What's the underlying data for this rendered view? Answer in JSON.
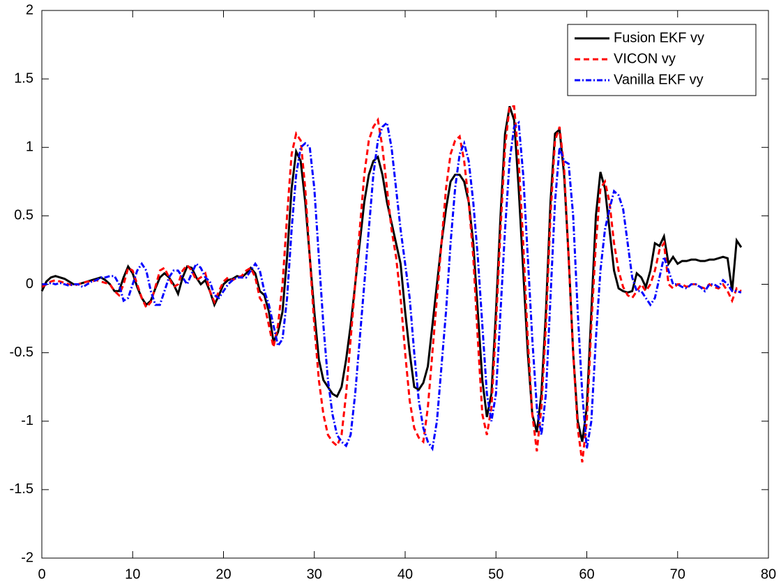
{
  "chart_data": {
    "type": "line",
    "x": [
      0,
      0.5,
      1,
      1.5,
      2,
      2.5,
      3,
      3.5,
      4,
      4.5,
      5,
      5.5,
      6,
      6.5,
      7,
      7.5,
      8,
      8.5,
      9,
      9.5,
      10,
      10.5,
      11,
      11.5,
      12,
      12.5,
      13,
      13.5,
      14,
      14.5,
      15,
      15.5,
      16,
      16.5,
      17,
      17.5,
      18,
      18.5,
      19,
      19.5,
      20,
      20.5,
      21,
      21.5,
      22,
      22.5,
      23,
      23.5,
      24,
      24.5,
      25,
      25.5,
      26,
      26.5,
      27,
      27.5,
      28,
      28.5,
      29,
      29.5,
      30,
      30.5,
      31,
      31.5,
      32,
      32.5,
      33,
      33.5,
      34,
      34.5,
      35,
      35.5,
      36,
      36.5,
      37,
      37.5,
      38,
      38.5,
      39,
      39.5,
      40,
      40.5,
      41,
      41.5,
      42,
      42.5,
      43,
      43.5,
      44,
      44.5,
      45,
      45.5,
      46,
      46.5,
      47,
      47.5,
      48,
      48.5,
      49,
      49.5,
      50,
      50.5,
      51,
      51.5,
      52,
      52.5,
      53,
      53.5,
      54,
      54.5,
      55,
      55.5,
      56,
      56.5,
      57,
      57.5,
      58,
      58.5,
      59,
      59.5,
      60,
      60.5,
      61,
      61.5,
      62,
      62.5,
      63,
      63.5,
      64,
      64.5,
      65,
      65.5,
      66,
      66.5,
      67,
      67.5,
      68,
      68.5,
      69,
      69.5,
      70,
      70.5,
      71,
      71.5,
      72,
      72.5,
      73,
      73.5,
      74,
      74.5,
      75,
      75.5,
      76,
      76.5,
      77
    ],
    "series": [
      {
        "name": "Fusion EKF vy",
        "color": "#000000",
        "dash": "solid",
        "values": [
          -0.05,
          0.02,
          0.05,
          0.06,
          0.05,
          0.04,
          0.02,
          0.0,
          0.0,
          0.01,
          0.02,
          0.03,
          0.04,
          0.05,
          0.03,
          0.0,
          -0.05,
          -0.05,
          0.05,
          0.13,
          0.08,
          -0.02,
          -0.1,
          -0.15,
          -0.12,
          -0.03,
          0.05,
          0.08,
          0.05,
          0.0,
          -0.07,
          0.05,
          0.13,
          0.12,
          0.05,
          0.0,
          0.03,
          -0.05,
          -0.15,
          -0.08,
          0.0,
          0.03,
          0.04,
          0.06,
          0.05,
          0.08,
          0.12,
          0.08,
          -0.05,
          -0.08,
          -0.2,
          -0.42,
          -0.35,
          -0.2,
          0.2,
          0.7,
          0.97,
          0.9,
          0.6,
          0.2,
          -0.2,
          -0.55,
          -0.7,
          -0.75,
          -0.8,
          -0.82,
          -0.75,
          -0.55,
          -0.3,
          0.0,
          0.3,
          0.6,
          0.8,
          0.9,
          0.93,
          0.8,
          0.6,
          0.45,
          0.3,
          0.15,
          -0.2,
          -0.5,
          -0.75,
          -0.77,
          -0.72,
          -0.6,
          -0.3,
          0.0,
          0.3,
          0.55,
          0.75,
          0.8,
          0.8,
          0.75,
          0.6,
          0.3,
          -0.2,
          -0.7,
          -0.97,
          -0.8,
          -0.2,
          0.5,
          1.1,
          1.3,
          1.2,
          0.7,
          0.1,
          -0.5,
          -0.95,
          -1.08,
          -0.8,
          -0.2,
          0.6,
          1.1,
          1.13,
          0.8,
          0.2,
          -0.5,
          -1.0,
          -1.15,
          -0.9,
          -0.2,
          0.5,
          0.82,
          0.7,
          0.4,
          0.1,
          -0.03,
          -0.05,
          -0.06,
          -0.05,
          0.08,
          0.05,
          -0.02,
          0.1,
          0.3,
          0.28,
          0.35,
          0.15,
          0.2,
          0.15,
          0.17,
          0.17,
          0.18,
          0.18,
          0.17,
          0.17,
          0.18,
          0.18,
          0.19,
          0.2,
          0.19,
          -0.05,
          0.32,
          0.27
        ]
      },
      {
        "name": "VICON vy",
        "color": "#ff0000",
        "dash": "dashed",
        "values": [
          -0.02,
          0.0,
          0.02,
          0.03,
          0.02,
          0.01,
          0.0,
          -0.01,
          0.0,
          0.01,
          0.02,
          0.02,
          0.03,
          0.02,
          0.01,
          0.0,
          -0.05,
          -0.08,
          0.0,
          0.12,
          0.1,
          0.0,
          -0.1,
          -0.17,
          -0.13,
          -0.02,
          0.1,
          0.12,
          0.05,
          -0.02,
          0.0,
          0.1,
          0.14,
          0.1,
          0.03,
          0.05,
          0.08,
          -0.05,
          -0.13,
          -0.05,
          0.02,
          0.05,
          0.03,
          0.05,
          0.06,
          0.1,
          0.12,
          0.05,
          -0.1,
          -0.15,
          -0.3,
          -0.46,
          -0.3,
          0.0,
          0.5,
          0.95,
          1.1,
          1.05,
          0.7,
          0.2,
          -0.3,
          -0.7,
          -0.95,
          -1.1,
          -1.15,
          -1.18,
          -1.1,
          -0.8,
          -0.4,
          0.0,
          0.4,
          0.8,
          1.05,
          1.15,
          1.2,
          1.0,
          0.7,
          0.4,
          0.2,
          -0.1,
          -0.5,
          -0.85,
          -1.05,
          -1.12,
          -1.15,
          -0.9,
          -0.5,
          -0.1,
          0.3,
          0.7,
          0.95,
          1.05,
          1.08,
          0.9,
          0.6,
          0.2,
          -0.4,
          -0.95,
          -1.1,
          -0.9,
          -0.3,
          0.4,
          1.0,
          1.3,
          1.3,
          0.9,
          0.3,
          -0.4,
          -0.95,
          -1.22,
          -0.9,
          -0.3,
          0.5,
          1.05,
          1.15,
          0.85,
          0.2,
          -0.5,
          -1.05,
          -1.3,
          -1.0,
          -0.3,
          0.3,
          0.7,
          0.75,
          0.6,
          0.3,
          0.1,
          -0.02,
          -0.08,
          -0.1,
          -0.05,
          0.0,
          -0.05,
          0.0,
          0.1,
          0.25,
          0.3,
          0.0,
          -0.03,
          0.0,
          0.0,
          -0.02,
          0.0,
          0.0,
          -0.02,
          -0.03,
          0.0,
          -0.02,
          -0.03,
          0.0,
          -0.05,
          -0.12,
          -0.03,
          -0.05
        ]
      },
      {
        "name": "Vanilla EKF vy",
        "color": "#0000ff",
        "dash": "dashdot",
        "values": [
          0.0,
          0.0,
          0.01,
          0.0,
          0.01,
          0.0,
          -0.01,
          0.0,
          0.0,
          -0.02,
          0.0,
          0.02,
          0.03,
          0.05,
          0.05,
          0.06,
          0.06,
          0.0,
          -0.12,
          -0.1,
          0.0,
          0.1,
          0.15,
          0.1,
          -0.05,
          -0.15,
          -0.15,
          -0.05,
          0.05,
          0.1,
          0.1,
          0.05,
          0.0,
          0.08,
          0.15,
          0.12,
          0.05,
          0.02,
          -0.08,
          -0.1,
          -0.05,
          0.0,
          0.03,
          0.05,
          0.05,
          0.05,
          0.1,
          0.15,
          0.1,
          -0.05,
          -0.15,
          -0.3,
          -0.45,
          -0.4,
          -0.1,
          0.4,
          0.8,
          1.0,
          1.03,
          1.0,
          0.7,
          0.2,
          -0.3,
          -0.7,
          -0.95,
          -1.1,
          -1.15,
          -1.18,
          -1.1,
          -0.8,
          -0.4,
          0.0,
          0.4,
          0.8,
          1.05,
          1.15,
          1.18,
          1.0,
          0.7,
          0.4,
          0.15,
          -0.1,
          -0.5,
          -0.85,
          -1.05,
          -1.15,
          -1.2,
          -1.0,
          -0.6,
          -0.2,
          0.3,
          0.7,
          0.95,
          1.03,
          0.9,
          0.6,
          0.2,
          -0.3,
          -0.8,
          -1.0,
          -0.8,
          -0.2,
          0.4,
          0.9,
          1.15,
          1.18,
          0.8,
          0.2,
          -0.4,
          -0.9,
          -1.1,
          -0.8,
          -0.1,
          0.6,
          1.0,
          0.9,
          0.88,
          0.5,
          -0.2,
          -0.8,
          -1.2,
          -1.0,
          -0.4,
          0.1,
          0.4,
          0.55,
          0.68,
          0.65,
          0.55,
          0.3,
          0.05,
          -0.05,
          -0.05,
          -0.1,
          -0.15,
          -0.1,
          0.05,
          0.2,
          0.1,
          0.0,
          0.0,
          -0.02,
          -0.03,
          0.0,
          0.0,
          -0.02,
          -0.05,
          0.0,
          0.0,
          -0.02,
          0.03,
          0.0,
          -0.05,
          -0.05,
          -0.06
        ]
      }
    ],
    "xlim": [
      0,
      80
    ],
    "xticks": [
      0,
      10,
      20,
      30,
      40,
      50,
      60,
      70,
      80
    ],
    "ylim": [
      -2,
      2
    ],
    "yticks": [
      -2,
      -1.5,
      -1,
      -0.5,
      0,
      0.5,
      1,
      1.5,
      2
    ],
    "grid": false,
    "legend": "top-right"
  }
}
